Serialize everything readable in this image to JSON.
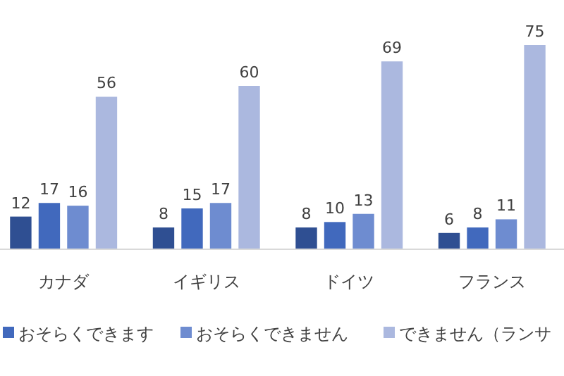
{
  "chart_data": {
    "type": "bar",
    "categories": [
      "カナダ",
      "イギリス",
      "ドイツ",
      "フランス"
    ],
    "series": [
      {
        "color": "#2f4f92",
        "values": [
          12,
          8,
          8,
          6
        ]
      },
      {
        "name": "おそらくできます",
        "color": "#4169bd",
        "values": [
          17,
          15,
          10,
          8
        ]
      },
      {
        "name": "おそらくできません",
        "color": "#6e8cd0",
        "values": [
          16,
          17,
          13,
          11
        ]
      },
      {
        "name": "できません（ランサ",
        "color": "#abb8df",
        "values": [
          56,
          60,
          69,
          75
        ]
      }
    ],
    "data_labels": true,
    "legend": "bottom",
    "grid": false
  }
}
